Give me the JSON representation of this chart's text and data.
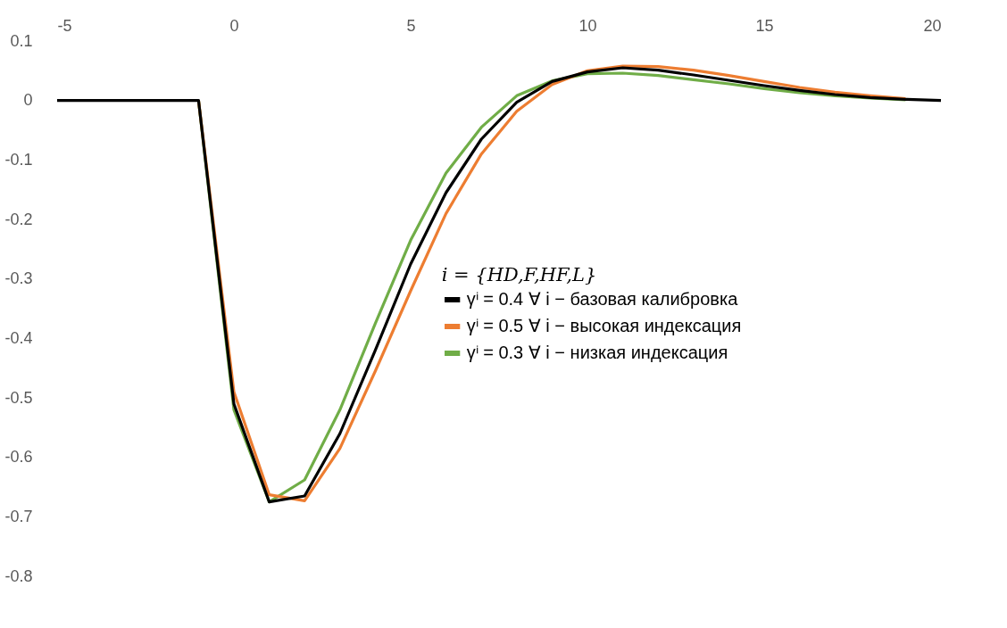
{
  "chart_data": {
    "type": "line",
    "x": [
      -5,
      -4,
      -3,
      -2,
      -1,
      0,
      1,
      2,
      3,
      4,
      5,
      6,
      7,
      8,
      9,
      10,
      11,
      12,
      13,
      14,
      15,
      16,
      17,
      18,
      19,
      20
    ],
    "series": [
      {
        "name": "γⁱ = 0.4 ∀ i  − базовая калибровка",
        "color": "#000000",
        "values": [
          0,
          0,
          0,
          0,
          0,
          -0.51,
          -0.675,
          -0.665,
          -0.56,
          -0.42,
          -0.275,
          -0.155,
          -0.065,
          -0.003,
          0.032,
          0.048,
          0.055,
          0.051,
          0.043,
          0.034,
          0.025,
          0.017,
          0.01,
          0.005,
          0.002,
          0
        ]
      },
      {
        "name": "γⁱ = 0.5 ∀ i  − высокая индексация",
        "color": "#ed7d31",
        "values": [
          null,
          null,
          null,
          null,
          0,
          -0.49,
          -0.663,
          -0.673,
          -0.585,
          -0.455,
          -0.32,
          -0.19,
          -0.09,
          -0.018,
          0.027,
          0.05,
          0.058,
          0.057,
          0.051,
          0.042,
          0.032,
          0.022,
          0.014,
          0.008,
          0.003,
          null
        ]
      },
      {
        "name": "γⁱ = 0.3 ∀ i  − низкая индексация",
        "color": "#70ad47",
        "values": [
          null,
          null,
          null,
          null,
          0,
          -0.52,
          -0.675,
          -0.638,
          -0.52,
          -0.375,
          -0.235,
          -0.122,
          -0.045,
          0.008,
          0.033,
          0.045,
          0.046,
          0.042,
          0.035,
          0.028,
          0.02,
          0.013,
          0.008,
          0.004,
          0.001,
          null
        ]
      }
    ],
    "legend_title": "i = {HD,F,HF,L}",
    "legend": "right",
    "xlim": [
      -5,
      20
    ],
    "xticks": [
      -5,
      0,
      5,
      10,
      15,
      20
    ],
    "ylim": [
      -0.8,
      0.1
    ],
    "yticks": [
      -0.8,
      -0.7,
      -0.6,
      -0.5,
      -0.4,
      -0.3,
      -0.2,
      -0.1,
      0,
      0.1
    ],
    "grid": false,
    "marker": "none",
    "line_style": "solid"
  }
}
